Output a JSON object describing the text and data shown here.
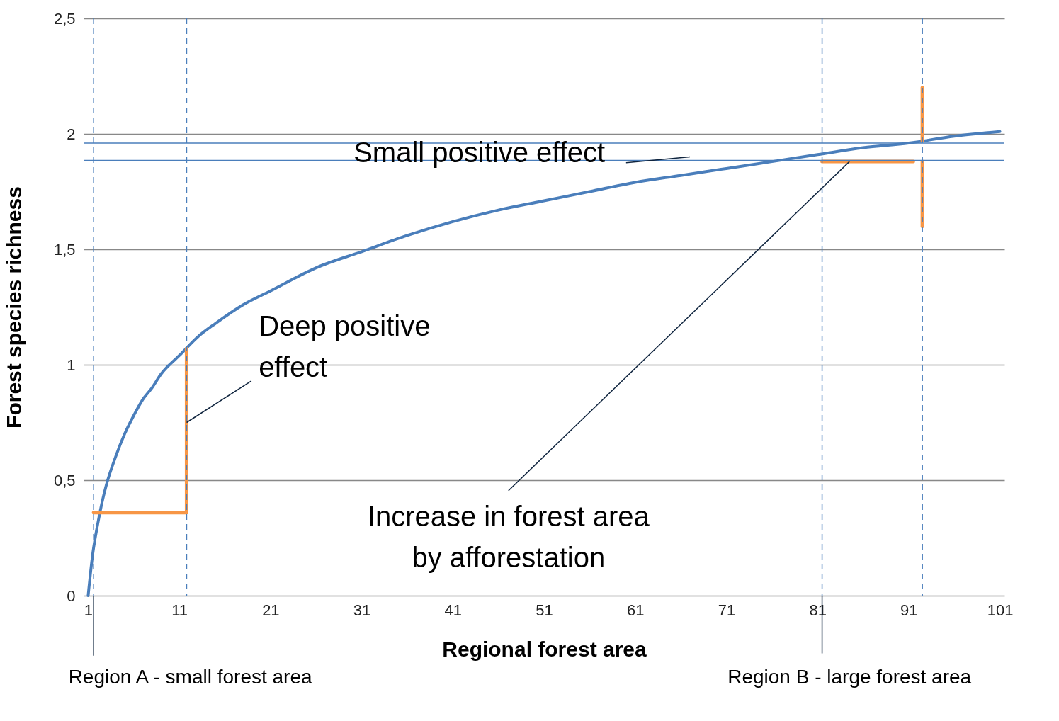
{
  "chart_data": {
    "type": "line",
    "xlabel": "Regional forest area",
    "ylabel": "Forest species richness",
    "xlim": [
      0.5,
      101.5
    ],
    "ylim": [
      0,
      2.5
    ],
    "xticks": [
      1,
      11,
      21,
      31,
      41,
      51,
      61,
      71,
      81,
      91,
      101
    ],
    "yticks": [
      {
        "value": 0,
        "label": "0"
      },
      {
        "value": 0.5,
        "label": "0,5"
      },
      {
        "value": 1,
        "label": "1"
      },
      {
        "value": 1.5,
        "label": "1,5"
      },
      {
        "value": 2,
        "label": "2"
      },
      {
        "value": 2.5,
        "label": "2,5"
      }
    ],
    "grid": "y",
    "marker": "none",
    "line_style": "solid",
    "series": [
      {
        "color": "#4a7ebb",
        "x": [
          1,
          1.5,
          2,
          2.5,
          3,
          4,
          5,
          6,
          7,
          8,
          9,
          11,
          13,
          15,
          18,
          21,
          26,
          31,
          36,
          41,
          46,
          51,
          56,
          61,
          66,
          71,
          76,
          81,
          86,
          91,
          96,
          101
        ],
        "values": [
          0,
          0.18,
          0.3,
          0.4,
          0.48,
          0.6,
          0.7,
          0.78,
          0.85,
          0.9,
          0.96,
          1.04,
          1.12,
          1.18,
          1.26,
          1.32,
          1.42,
          1.49,
          1.56,
          1.62,
          1.67,
          1.71,
          1.75,
          1.79,
          1.82,
          1.85,
          1.88,
          1.91,
          1.94,
          1.96,
          1.99,
          2.01
        ]
      },
      {
        "color": "#f79646",
        "x": [
          1.6,
          11.8,
          11.8
        ],
        "values": [
          0.36,
          0.36,
          1.07
        ]
      },
      {
        "color": "#f79646",
        "x": [
          81.5,
          91.5
        ],
        "values": [
          1.88,
          1.88
        ]
      },
      {
        "color": "#f79646",
        "x": [
          92.5,
          92.5
        ],
        "values": [
          2.2,
          1.97
        ]
      },
      {
        "color": "#f79646",
        "x": [
          92.5,
          92.5
        ],
        "values": [
          1.6,
          1.88
        ]
      }
    ],
    "ref_lines": [
      {
        "axis": "x",
        "value": 1.6,
        "color": "#4a7ebb",
        "line_style": "dashed"
      },
      {
        "axis": "x",
        "value": 11.8,
        "color": "#4a7ebb",
        "line_style": "dashed"
      },
      {
        "axis": "x",
        "value": 81.5,
        "color": "#4a7ebb",
        "line_style": "dashed"
      },
      {
        "axis": "x",
        "value": 92.5,
        "color": "#4a7ebb",
        "line_style": "dashed"
      },
      {
        "axis": "y",
        "value": 1.96,
        "color": "#4a7ebb",
        "line_style": "solid"
      },
      {
        "axis": "y",
        "value": 1.885,
        "color": "#4a7ebb",
        "line_style": "solid"
      }
    ],
    "annotations": [
      {
        "text": "Small positive effect",
        "x": 67,
        "y": 1.9
      },
      {
        "text": "Deep positive effect",
        "x": 11.8,
        "y": 0.75
      },
      {
        "text": "Increase in forest area by afforestation",
        "x": 84.5,
        "y": 1.88
      },
      {
        "text": "Region A - small forest area",
        "x": 1.6,
        "y": 0
      },
      {
        "text": "Region B - large forest area",
        "x": 81.5,
        "y": 0
      }
    ]
  }
}
